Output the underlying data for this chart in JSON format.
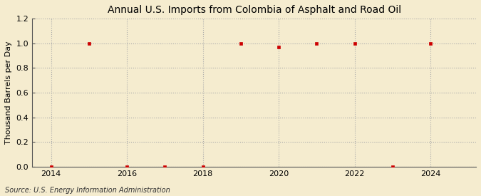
{
  "title": "Annual U.S. Imports from Colombia of Asphalt and Road Oil",
  "ylabel": "Thousand Barrels per Day",
  "source": "Source: U.S. Energy Information Administration",
  "years": [
    2014,
    2015,
    2016,
    2017,
    2018,
    2019,
    2020,
    2021,
    2022,
    2023,
    2024
  ],
  "values": [
    0.0,
    1.0,
    0.0,
    0.0,
    0.0,
    1.0,
    0.97,
    1.0,
    1.0,
    0.0,
    1.0
  ],
  "xlim": [
    2013.5,
    2025.2
  ],
  "ylim": [
    0.0,
    1.2
  ],
  "yticks": [
    0.0,
    0.2,
    0.4,
    0.6,
    0.8,
    1.0,
    1.2
  ],
  "xticks": [
    2014,
    2016,
    2018,
    2020,
    2022,
    2024
  ],
  "marker_color": "#cc0000",
  "marker": "s",
  "marker_size": 3.5,
  "grid_color": "#aaaaaa",
  "grid_linestyle": ":",
  "grid_linewidth": 0.8,
  "bg_color": "#f5eccf",
  "title_fontsize": 10,
  "label_fontsize": 8,
  "tick_fontsize": 8,
  "source_fontsize": 7
}
